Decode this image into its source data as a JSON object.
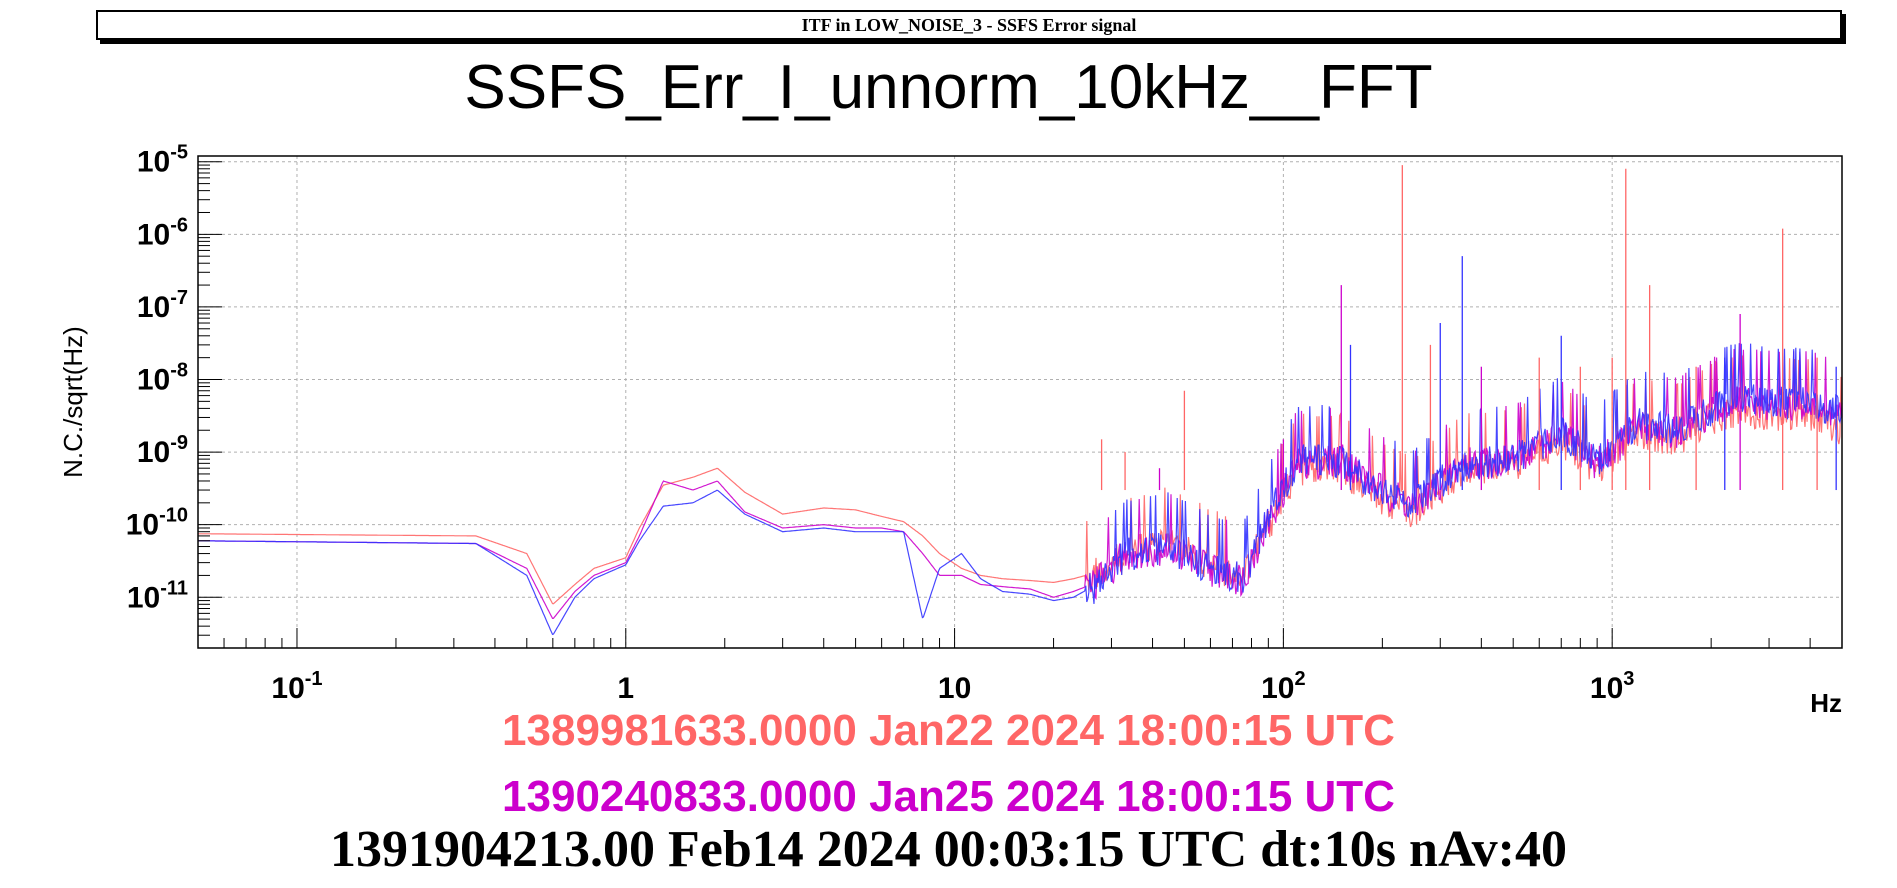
{
  "header": {
    "banner": "ITF in LOW_NOISE_3 -  SSFS Error signal",
    "title": "SSFS_Err_I_unnorm_10kHz__FFT"
  },
  "timestamps": {
    "ref1": "1389981633.0000 Jan22 2024 18:00:15 UTC",
    "ref2": "1390240833.0000 Jan25 2024 18:00:15 UTC",
    "main": "1391904213.00 Feb14 2024 00:03:15 UTC dt:10s nAv:40"
  },
  "chart_data": {
    "type": "line",
    "title": "SSFS_Err_I_unnorm_10kHz__FFT",
    "xlabel": "Hz",
    "ylabel": "N.C./sqrt(Hz)",
    "xscale": "log",
    "yscale": "log",
    "xlim": [
      0.05,
      5000
    ],
    "ylim": [
      2e-12,
      1.2e-05
    ],
    "grid": true,
    "x_ticks": [
      {
        "value": 0.1,
        "base": "10",
        "exp": "-1"
      },
      {
        "value": 1,
        "base": "1",
        "exp": ""
      },
      {
        "value": 10,
        "base": "10",
        "exp": ""
      },
      {
        "value": 100,
        "base": "10",
        "exp": "2"
      },
      {
        "value": 1000,
        "base": "10",
        "exp": "3"
      }
    ],
    "y_ticks": [
      {
        "value": 1e-05,
        "base": "10",
        "exp": "-5"
      },
      {
        "value": 1e-06,
        "base": "10",
        "exp": "-6"
      },
      {
        "value": 1e-07,
        "base": "10",
        "exp": "-7"
      },
      {
        "value": 1e-08,
        "base": "10",
        "exp": "-8"
      },
      {
        "value": 1e-09,
        "base": "10",
        "exp": "-9"
      },
      {
        "value": 1e-10,
        "base": "10",
        "exp": "-10"
      },
      {
        "value": 1e-11,
        "base": "10",
        "exp": "-11"
      }
    ],
    "series": [
      {
        "label": "1389981633.0000 Jan22 2024 18:00:15 UTC",
        "color": "#ff6666",
        "x": [
          0.05,
          0.35,
          0.5,
          0.6,
          0.7,
          0.8,
          1.0,
          1.1,
          1.3,
          1.6,
          1.9,
          2.3,
          3.0,
          4.0,
          5.0,
          6.0,
          7.0,
          8.0,
          9.0,
          10.5,
          12.0,
          14.0,
          17.0,
          20.0,
          23.0,
          27.0,
          33.0,
          45.0,
          60.0,
          75.0,
          90.0,
          110.0,
          150.0,
          200.0,
          250.0,
          350.0,
          500.0,
          700.0,
          900.0,
          1200.0,
          1600.0,
          2000.0,
          2400.0,
          3000.0,
          4000.0,
          5000.0
        ],
        "y": [
          7.5e-11,
          7e-11,
          4e-11,
          8e-12,
          1.5e-11,
          2.5e-11,
          3.5e-11,
          9e-11,
          3.5e-10,
          4.5e-10,
          6e-10,
          2.8e-10,
          1.4e-10,
          1.7e-10,
          1.6e-10,
          1.3e-10,
          1.1e-10,
          7e-11,
          4e-11,
          2.5e-11,
          2e-11,
          1.8e-11,
          1.7e-11,
          1.6e-11,
          1.8e-11,
          2.2e-11,
          4e-11,
          6e-11,
          3e-11,
          2e-11,
          1e-10,
          6e-10,
          6e-10,
          2.4e-10,
          1.5e-10,
          6e-10,
          7e-10,
          1.5e-09,
          6e-10,
          1.8e-09,
          1.6e-09,
          3e-09,
          4e-09,
          3.5e-09,
          3.5e-09,
          2e-09
        ]
      },
      {
        "label": "1390240833.0000 Jan25 2024 18:00:15 UTC",
        "color": "#cc00cc",
        "x": [
          0.05,
          0.35,
          0.5,
          0.6,
          0.7,
          0.8,
          1.0,
          1.1,
          1.3,
          1.6,
          1.9,
          2.3,
          3.0,
          4.0,
          5.0,
          6.0,
          7.0,
          8.0,
          9.0,
          10.5,
          12.0,
          14.0,
          17.0,
          20.0,
          23.0,
          27.0,
          33.0,
          45.0,
          60.0,
          75.0,
          90.0,
          110.0,
          150.0,
          200.0,
          250.0,
          350.0,
          500.0,
          700.0,
          900.0,
          1200.0,
          1600.0,
          2000.0,
          2400.0,
          3000.0,
          4000.0,
          5000.0
        ],
        "y": [
          6e-11,
          5.5e-11,
          2.5e-11,
          5e-12,
          1.2e-11,
          2e-11,
          3e-11,
          7e-11,
          4e-10,
          3e-10,
          4e-10,
          1.5e-10,
          9e-11,
          1e-10,
          9e-11,
          9e-11,
          8e-11,
          4e-11,
          2e-11,
          2e-11,
          1.5e-11,
          1.4e-11,
          1.3e-11,
          1e-11,
          1.2e-11,
          1.6e-11,
          4e-11,
          5e-11,
          2.5e-11,
          1.8e-11,
          1.1e-10,
          7e-10,
          8e-10,
          3e-10,
          1.8e-10,
          7e-10,
          8e-10,
          1.8e-09,
          7e-10,
          2.2e-09,
          2e-09,
          3.5e-09,
          5e-09,
          4.5e-09,
          4.5e-09,
          3e-09
        ]
      },
      {
        "label": "1391904213.00 Feb14 2024 00:03:15 UTC dt:10s nAv:40",
        "color": "#3333ff",
        "x": [
          0.05,
          0.35,
          0.5,
          0.6,
          0.7,
          0.8,
          1.0,
          1.1,
          1.3,
          1.6,
          1.9,
          2.3,
          3.0,
          4.0,
          5.0,
          6.0,
          7.0,
          8.0,
          9.0,
          10.5,
          12.0,
          14.0,
          17.0,
          20.0,
          23.0,
          27.0,
          33.0,
          45.0,
          60.0,
          75.0,
          90.0,
          110.0,
          150.0,
          200.0,
          250.0,
          350.0,
          500.0,
          700.0,
          900.0,
          1200.0,
          1600.0,
          2000.0,
          2400.0,
          3000.0,
          4000.0,
          5000.0
        ],
        "y": [
          6e-11,
          5.5e-11,
          2e-11,
          3e-12,
          1e-11,
          1.8e-11,
          2.8e-11,
          6e-11,
          1.8e-10,
          2e-10,
          3e-10,
          1.4e-10,
          8e-11,
          9e-11,
          8e-11,
          8e-11,
          8e-11,
          5e-12,
          2.5e-11,
          4e-11,
          1.8e-11,
          1.2e-11,
          1.1e-11,
          9e-12,
          1e-11,
          1.5e-11,
          4e-11,
          5e-11,
          2.5e-11,
          1.8e-11,
          1.2e-10,
          8e-10,
          8e-10,
          3e-10,
          2e-10,
          7e-10,
          8e-10,
          2e-09,
          8e-10,
          2.5e-09,
          2.2e-09,
          4e-09,
          6e-09,
          5e-09,
          5e-09,
          3.5e-09
        ]
      }
    ],
    "spikes": [
      {
        "x": 28,
        "y": 1.5e-09,
        "color": "#ff6666"
      },
      {
        "x": 33,
        "y": 1e-09,
        "color": "#ff6666"
      },
      {
        "x": 42,
        "y": 6e-10,
        "color": "#cc00cc"
      },
      {
        "x": 50,
        "y": 7e-09,
        "color": "#ff6666"
      },
      {
        "x": 100,
        "y": 1.5e-09,
        "color": "#cc00cc"
      },
      {
        "x": 150,
        "y": 2e-07,
        "color": "#cc00cc"
      },
      {
        "x": 160,
        "y": 3e-08,
        "color": "#3333ff"
      },
      {
        "x": 230,
        "y": 9e-06,
        "color": "#ff6666"
      },
      {
        "x": 280,
        "y": 3e-08,
        "color": "#ff6666"
      },
      {
        "x": 300,
        "y": 6e-08,
        "color": "#3333ff"
      },
      {
        "x": 350,
        "y": 5e-07,
        "color": "#3333ff"
      },
      {
        "x": 400,
        "y": 1.5e-08,
        "color": "#cc00cc"
      },
      {
        "x": 600,
        "y": 2e-08,
        "color": "#ff6666"
      },
      {
        "x": 700,
        "y": 4e-08,
        "color": "#3333ff"
      },
      {
        "x": 800,
        "y": 1.5e-08,
        "color": "#ff6666"
      },
      {
        "x": 1000,
        "y": 2e-08,
        "color": "#ff6666"
      },
      {
        "x": 1100,
        "y": 8e-06,
        "color": "#ff6666"
      },
      {
        "x": 1300,
        "y": 2e-07,
        "color": "#ff6666"
      },
      {
        "x": 1800,
        "y": 1.5e-08,
        "color": "#ff6666"
      },
      {
        "x": 2200,
        "y": 2e-08,
        "color": "#3333ff"
      },
      {
        "x": 2450,
        "y": 8e-08,
        "color": "#cc00cc"
      },
      {
        "x": 3300,
        "y": 1.2e-06,
        "color": "#ff6666"
      },
      {
        "x": 4200,
        "y": 2e-08,
        "color": "#ff6666"
      },
      {
        "x": 4800,
        "y": 1.5e-08,
        "color": "#3333ff"
      }
    ]
  }
}
